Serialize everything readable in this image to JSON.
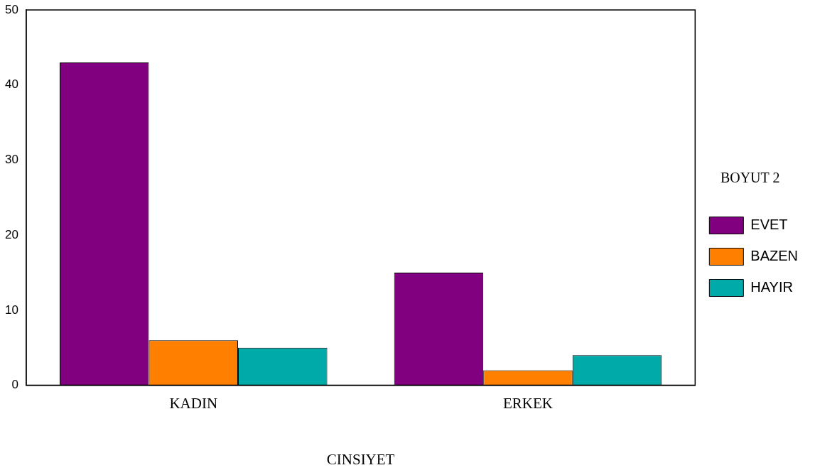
{
  "chart_data": {
    "type": "bar",
    "xlabel": "CINSIYET",
    "legend_title": "BOYUT 2",
    "categories": [
      "KADIN",
      "ERKEK"
    ],
    "series": [
      {
        "name": "EVET",
        "color": "#800080",
        "values": [
          43,
          15
        ]
      },
      {
        "name": "BAZEN",
        "color": "#ff8000",
        "values": [
          6,
          2
        ]
      },
      {
        "name": "HAYIR",
        "color": "#00aaa8",
        "values": [
          5,
          4
        ]
      }
    ],
    "ylim": [
      0,
      50
    ],
    "yticks": [
      0,
      10,
      20,
      30,
      40,
      50
    ],
    "grid": false,
    "legend": "right"
  }
}
